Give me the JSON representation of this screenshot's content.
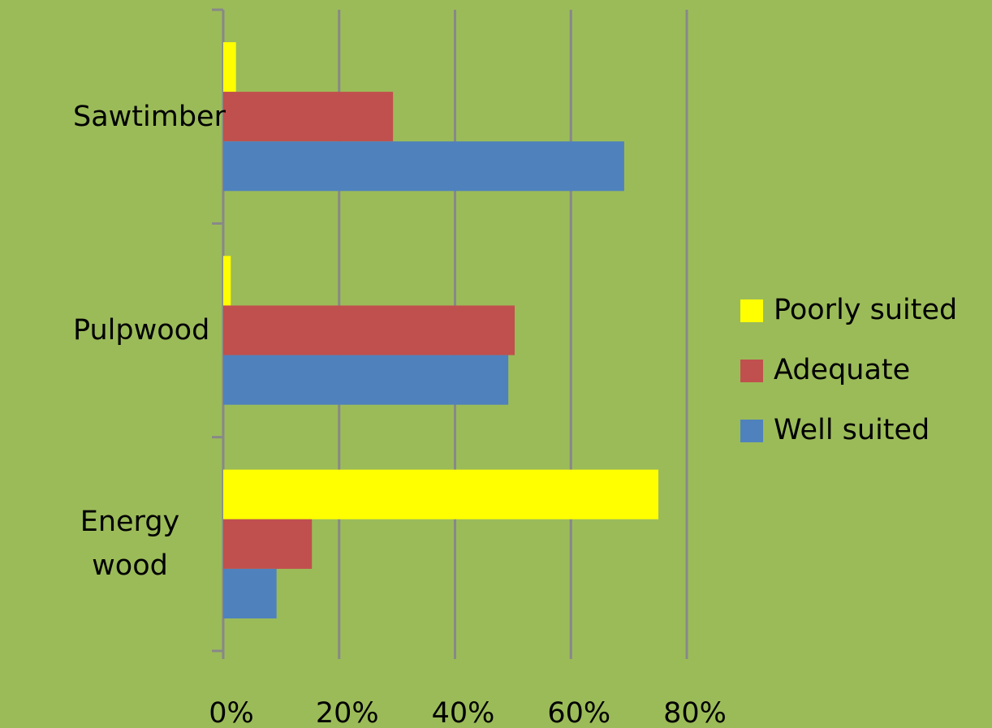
{
  "chart_data": {
    "type": "barh",
    "categories": [
      "Sawtimber",
      "Pulpwood",
      "Energy wood"
    ],
    "series": [
      {
        "name": "Poorly suited",
        "color": "#ffff00",
        "values": [
          2.2,
          1.3,
          75.1
        ]
      },
      {
        "name": "Adequate",
        "color": "#c0504d",
        "values": [
          29.3,
          50.3,
          15.3
        ]
      },
      {
        "name": "Well suited",
        "color": "#4f81bd",
        "values": [
          69.2,
          49.2,
          9.2
        ]
      }
    ],
    "xlim": [
      0,
      80
    ],
    "xticks": [
      {
        "value": 0,
        "label": "0%"
      },
      {
        "value": 20,
        "label": "20%"
      },
      {
        "value": 40,
        "label": "40%"
      },
      {
        "value": 60,
        "label": "60%"
      },
      {
        "value": 80,
        "label": "80%"
      }
    ],
    "grid": true,
    "legend": "right"
  }
}
